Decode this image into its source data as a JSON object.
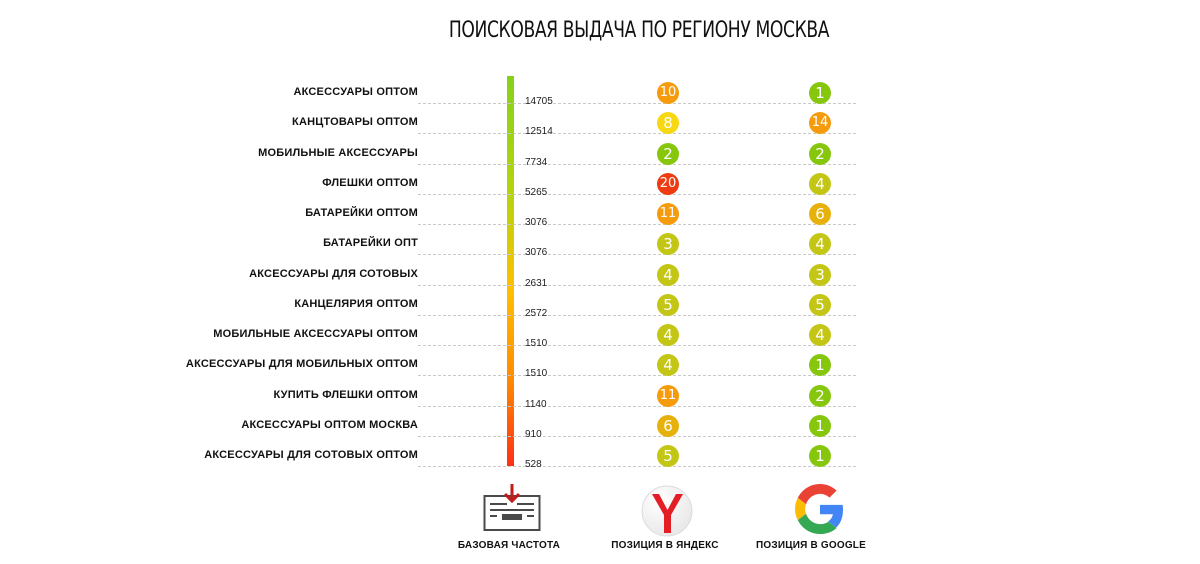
{
  "chart_data": {
    "type": "table",
    "title": "ПОИСКОВАЯ ВЫДАЧА ПО РЕГИОНУ МОСКВА",
    "columns": [
      "БАЗОВАЯ ЧАСТОТА",
      "ПОЗИЦИЯ В ЯНДЕКС",
      "ПОЗИЦИЯ В GOOGLE"
    ],
    "rows": [
      {
        "query": "АКСЕССУАРЫ ОПТОМ",
        "frequency": "14705",
        "yandex": "10",
        "google": "1"
      },
      {
        "query": "КАНЦТОВАРЫ ОПТОМ",
        "frequency": "12514",
        "yandex": "8",
        "google": "14"
      },
      {
        "query": "МОБИЛЬНЫЕ АКСЕССУАРЫ",
        "frequency": "7734",
        "yandex": "2",
        "google": "2"
      },
      {
        "query": "ФЛЕШКИ ОПТОМ",
        "frequency": "5265",
        "yandex": "20",
        "google": "4"
      },
      {
        "query": "БАТАРЕЙКИ ОПТОМ",
        "frequency": "3076",
        "yandex": "11",
        "google": "6"
      },
      {
        "query": "БАТАРЕЙКИ ОПТ",
        "frequency": "3076",
        "yandex": "3",
        "google": "4"
      },
      {
        "query": "АКСЕССУАРЫ ДЛЯ СОТОВЫХ",
        "frequency": "2631",
        "yandex": "4",
        "google": "3"
      },
      {
        "query": "КАНЦЕЛЯРИЯ ОПТОМ",
        "frequency": "2572",
        "yandex": "5",
        "google": "5"
      },
      {
        "query": "МОБИЛЬНЫЕ АКСЕССУАРЫ ОПТОМ",
        "frequency": "1510",
        "yandex": "4",
        "google": "4"
      },
      {
        "query": "АКСЕССУАРЫ ДЛЯ МОБИЛЬНЫХ ОПТОМ",
        "frequency": "1510",
        "yandex": "4",
        "google": "1"
      },
      {
        "query": "КУПИТЬ ФЛЕШКИ ОПТОМ",
        "frequency": "1140",
        "yandex": "11",
        "google": "2"
      },
      {
        "query": "АКСЕССУАРЫ ОПТОМ МОСКВА",
        "frequency": "910",
        "yandex": "6",
        "google": "1"
      },
      {
        "query": "АКСЕССУАРЫ ДЛЯ СОТОВЫХ ОПТОМ",
        "frequency": "528",
        "yandex": "5",
        "google": "1"
      }
    ],
    "frequency_bar_gradient": [
      "#86d11a",
      "#ffbf00",
      "#ff2f16"
    ],
    "position_colors": {
      "1-2": "#86c70e",
      "3-5": "#c4c616",
      "6": "#e7b10b",
      "8": "#f7d813",
      "10-14": "#f59b0c",
      "20": "#ef3b12"
    }
  },
  "footer": {
    "frequency": {
      "label": "БАЗОВАЯ ЧАСТОТА",
      "icon": "inbox-download-icon"
    },
    "yandex": {
      "label": "ПОЗИЦИЯ В ЯНДЕКС",
      "icon": "yandex-logo-icon"
    },
    "google": {
      "label": "ПОЗИЦИЯ В GOOGLE",
      "icon": "google-logo-icon"
    }
  }
}
